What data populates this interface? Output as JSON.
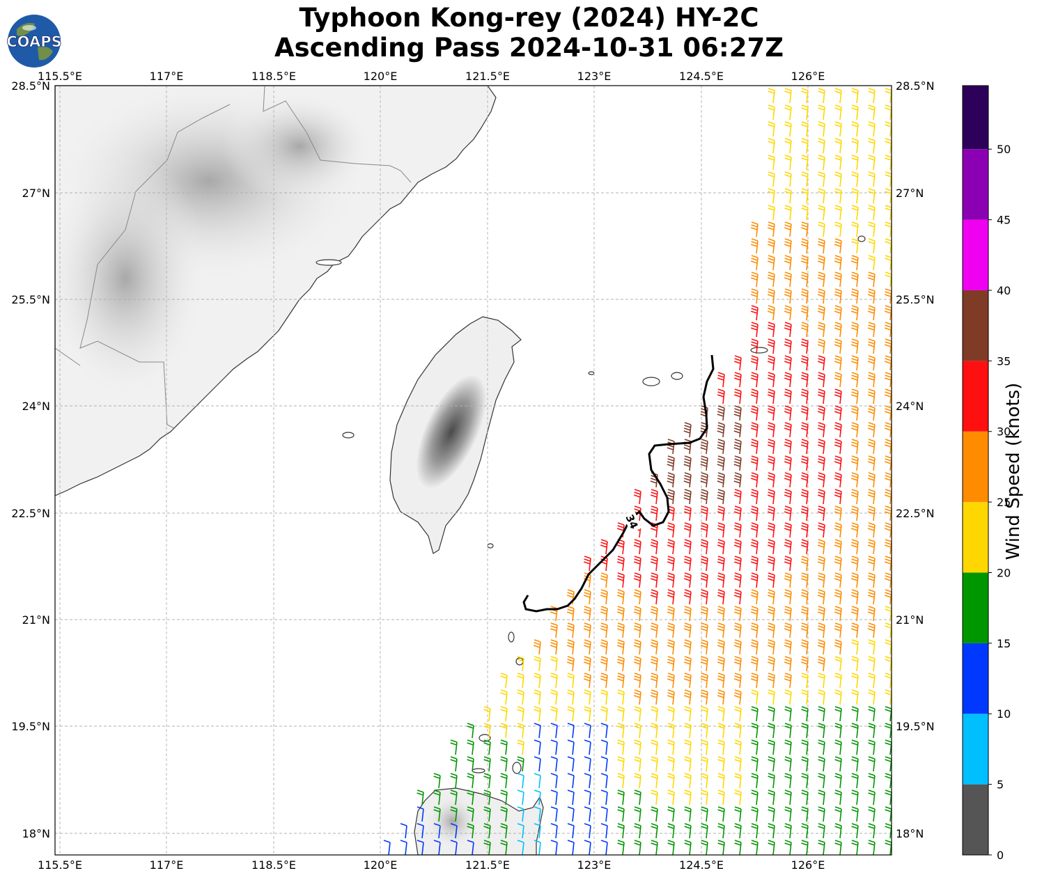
{
  "title": {
    "line1": "Typhoon Kong-rey (2024) HY-2C",
    "line2": "Ascending Pass 2024-10-31 06:27Z"
  },
  "logo": {
    "name": "coaps-globe-logo",
    "text": "COAPS"
  },
  "map": {
    "lon_range": [
      115.4,
      127.1
    ],
    "lat_range": [
      17.7,
      28.5
    ],
    "lon_ticks": [
      "115.5°E",
      "117°E",
      "118.5°E",
      "120°E",
      "121.5°E",
      "123°E",
      "124.5°E",
      "126°E"
    ],
    "lat_ticks": [
      "28.5°N",
      "27°N",
      "25.5°N",
      "24°N",
      "22.5°N",
      "21°N",
      "19.5°N",
      "18°N"
    ],
    "gridlines": "on, dashed gray",
    "contour_label": "34",
    "terrain": "grayscale elevation over land"
  },
  "colorbar": {
    "label": "Wind Speed (knots)",
    "ticks": [
      "0",
      "5",
      "10",
      "15",
      "20",
      "25",
      "30",
      "35",
      "40",
      "45",
      "50"
    ],
    "colors": [
      "#555555",
      "#00bfff",
      "#0038ff",
      "#009600",
      "#ffd700",
      "#ff8c00",
      "#ff1010",
      "#7f3b26",
      "#f000f0",
      "#8c00b4",
      "#2d005a"
    ]
  }
}
